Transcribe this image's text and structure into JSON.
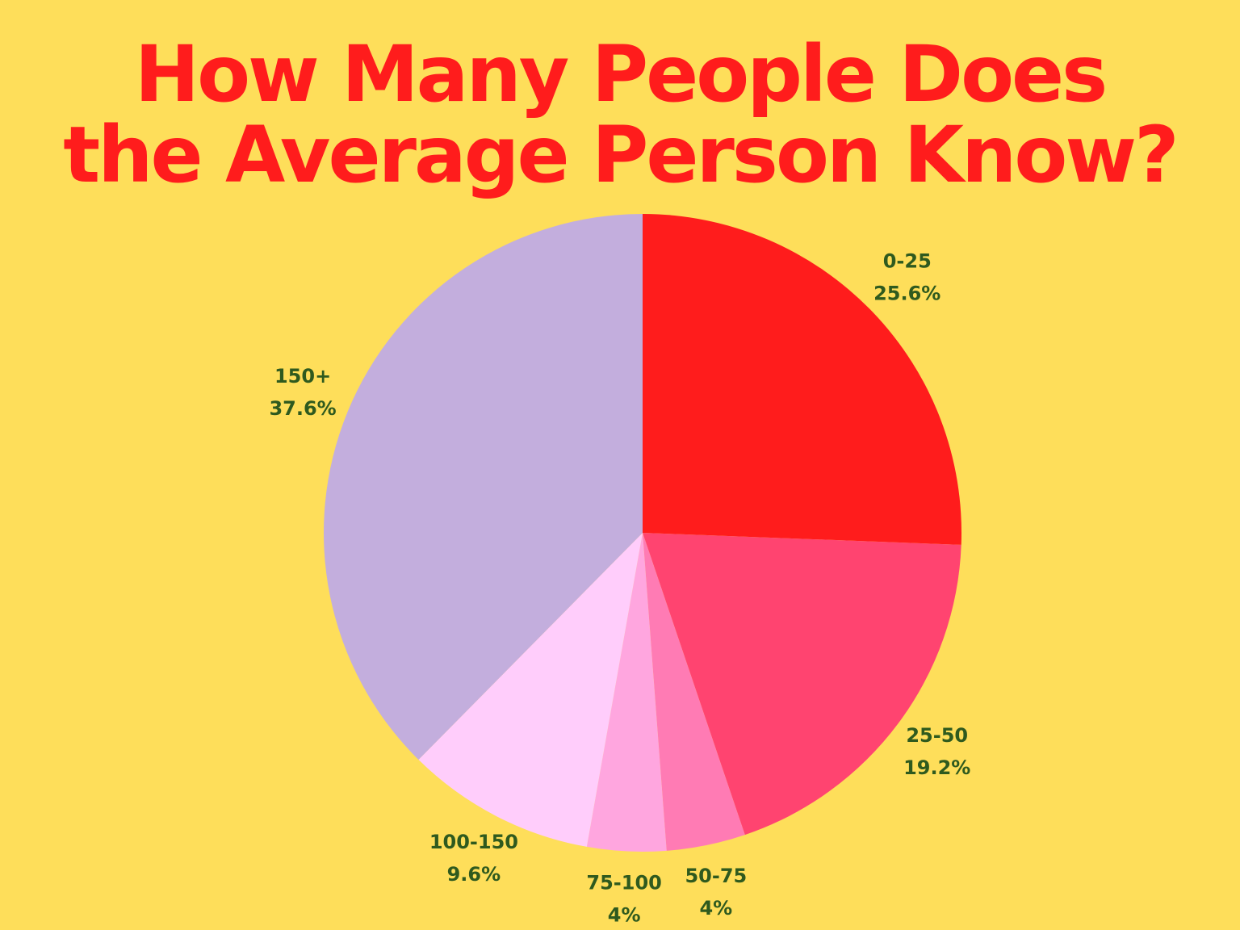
{
  "chart_data": {
    "type": "pie",
    "title": "How Many People Does the Average Person Know?",
    "categories": [
      "0-25",
      "25-50",
      "50-75",
      "75-100",
      "100-150",
      "150+"
    ],
    "values": [
      25.6,
      19.2,
      4,
      4,
      9.6,
      37.6
    ],
    "value_labels": [
      "25.6%",
      "19.2%",
      "4%",
      "4%",
      "9.6%",
      "37.6%"
    ],
    "colors": [
      "#ff1c1c",
      "#ff4470",
      "#ff7bb4",
      "#ffa6df",
      "#ffcdfb",
      "#c3aedd"
    ]
  }
}
